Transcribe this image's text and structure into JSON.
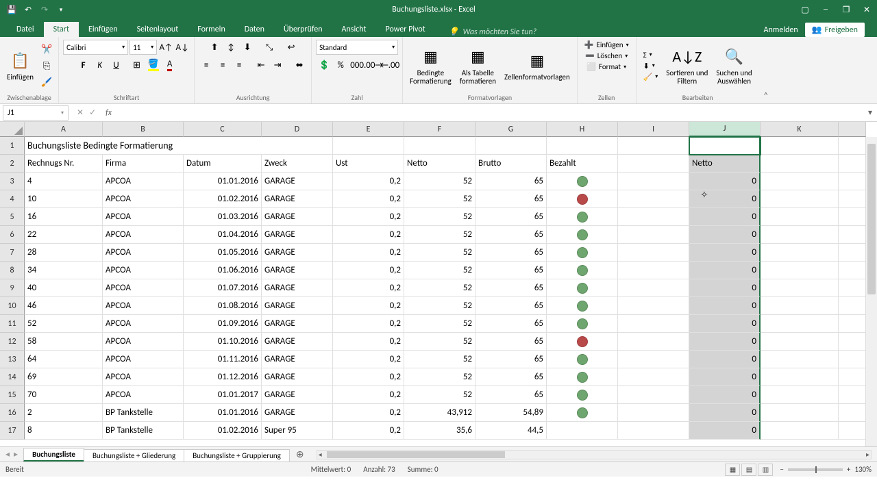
{
  "title": "Buchungsliste.xlsx - Excel",
  "tabs": [
    "Datei",
    "Start",
    "Einfügen",
    "Seitenlayout",
    "Formeln",
    "Daten",
    "Überprüfen",
    "Ansicht",
    "Power Pivot"
  ],
  "active_tab": "Start",
  "tell_me": "Was möchten Sie tun?",
  "signin": "Anmelden",
  "share": "Freigeben",
  "ribbon_groups": {
    "clipboard": "Zwischenablage",
    "paste": "Einfügen",
    "font": "Schriftart",
    "alignment": "Ausrichtung",
    "number": "Zahl",
    "styles": "Formatvorlagen",
    "cells": "Zellen",
    "editing": "Bearbeiten"
  },
  "font_name": "Calibri",
  "font_size": "11",
  "number_format": "Standard",
  "styles": {
    "cond": "Bedingte\nFormatierung",
    "table": "Als Tabelle\nformatieren",
    "cell": "Zellenformatvorlagen"
  },
  "cells_btns": {
    "insert": "Einfügen",
    "delete": "Löschen",
    "format": "Format"
  },
  "editing_btns": {
    "sort": "Sortieren und\nFiltern",
    "find": "Suchen und\nAuswählen"
  },
  "name_box": "J1",
  "columns": [
    "A",
    "B",
    "C",
    "D",
    "E",
    "F",
    "G",
    "H",
    "I",
    "J",
    "K"
  ],
  "selected_col": "J",
  "headers": {
    "title": "Buchungsliste Bedingte Formatierung",
    "h": [
      "Rechnugs Nr.",
      "Firma",
      "Datum",
      "Zweck",
      "Ust",
      "Netto",
      "Brutto",
      "Bezahlt"
    ],
    "j2": "Netto"
  },
  "rows": [
    {
      "n": "4",
      "firma": "APCOA",
      "datum": "01.01.2016",
      "zweck": "GARAGE",
      "ust": "0,2",
      "netto": "52",
      "brutto": "65",
      "paid": "green",
      "j": "0"
    },
    {
      "n": "10",
      "firma": "APCOA",
      "datum": "01.02.2016",
      "zweck": "GARAGE",
      "ust": "0,2",
      "netto": "52",
      "brutto": "65",
      "paid": "red",
      "j": "0"
    },
    {
      "n": "16",
      "firma": "APCOA",
      "datum": "01.03.2016",
      "zweck": "GARAGE",
      "ust": "0,2",
      "netto": "52",
      "brutto": "65",
      "paid": "green",
      "j": "0"
    },
    {
      "n": "22",
      "firma": "APCOA",
      "datum": "01.04.2016",
      "zweck": "GARAGE",
      "ust": "0,2",
      "netto": "52",
      "brutto": "65",
      "paid": "green",
      "j": "0"
    },
    {
      "n": "28",
      "firma": "APCOA",
      "datum": "01.05.2016",
      "zweck": "GARAGE",
      "ust": "0,2",
      "netto": "52",
      "brutto": "65",
      "paid": "green",
      "j": "0"
    },
    {
      "n": "34",
      "firma": "APCOA",
      "datum": "01.06.2016",
      "zweck": "GARAGE",
      "ust": "0,2",
      "netto": "52",
      "brutto": "65",
      "paid": "green",
      "j": "0"
    },
    {
      "n": "40",
      "firma": "APCOA",
      "datum": "01.07.2016",
      "zweck": "GARAGE",
      "ust": "0,2",
      "netto": "52",
      "brutto": "65",
      "paid": "green",
      "j": "0"
    },
    {
      "n": "46",
      "firma": "APCOA",
      "datum": "01.08.2016",
      "zweck": "GARAGE",
      "ust": "0,2",
      "netto": "52",
      "brutto": "65",
      "paid": "green",
      "j": "0"
    },
    {
      "n": "52",
      "firma": "APCOA",
      "datum": "01.09.2016",
      "zweck": "GARAGE",
      "ust": "0,2",
      "netto": "52",
      "brutto": "65",
      "paid": "green",
      "j": "0"
    },
    {
      "n": "58",
      "firma": "APCOA",
      "datum": "01.10.2016",
      "zweck": "GARAGE",
      "ust": "0,2",
      "netto": "52",
      "brutto": "65",
      "paid": "red",
      "j": "0"
    },
    {
      "n": "64",
      "firma": "APCOA",
      "datum": "01.11.2016",
      "zweck": "GARAGE",
      "ust": "0,2",
      "netto": "52",
      "brutto": "65",
      "paid": "green",
      "j": "0"
    },
    {
      "n": "69",
      "firma": "APCOA",
      "datum": "01.12.2016",
      "zweck": "GARAGE",
      "ust": "0,2",
      "netto": "52",
      "brutto": "65",
      "paid": "green",
      "j": "0"
    },
    {
      "n": "70",
      "firma": "APCOA",
      "datum": "01.01.2017",
      "zweck": "GARAGE",
      "ust": "0,2",
      "netto": "52",
      "brutto": "65",
      "paid": "green",
      "j": "0"
    },
    {
      "n": "2",
      "firma": "BP Tankstelle",
      "datum": "01.01.2016",
      "zweck": "GARAGE",
      "ust": "0,2",
      "netto": "43,912",
      "brutto": "54,89",
      "paid": "green",
      "j": "0"
    },
    {
      "n": "8",
      "firma": "BP Tankstelle",
      "datum": "01.02.2016",
      "zweck": "Super 95",
      "ust": "0,2",
      "netto": "35,6",
      "brutto": "44,5",
      "paid": "",
      "j": "0"
    }
  ],
  "sheets": [
    "Buchungsliste",
    "Buchungsliste + Gliederung",
    "Buchungsliste + Gruppierung"
  ],
  "active_sheet": "Buchungsliste",
  "status": {
    "ready": "Bereit",
    "avg": "Mittelwert: 0",
    "count": "Anzahl: 73",
    "sum": "Summe: 0",
    "zoom": "130%"
  }
}
